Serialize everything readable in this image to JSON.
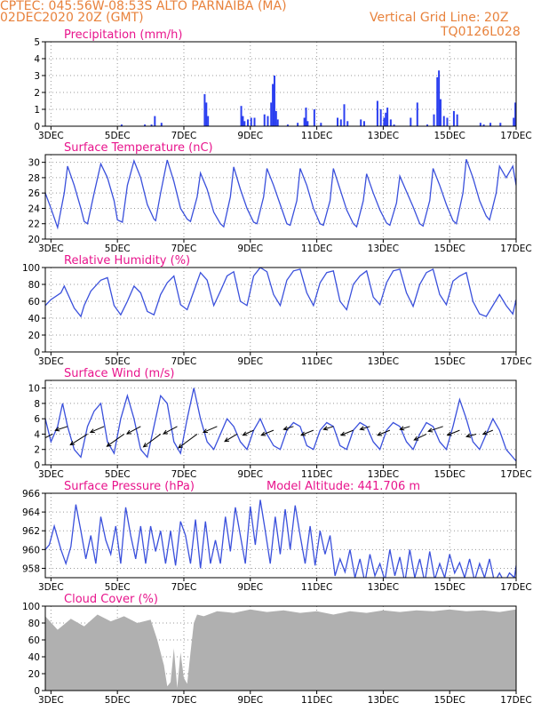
{
  "header": {
    "station": "CPTEC:   045:56W-08:53S   ALTO PARNAIBA (MA)",
    "run": "02DEC2020 20Z (GMT)",
    "grid_note": "Vertical Grid Line: 20Z",
    "code": "TQ0126L028",
    "text_color": "#e8823c",
    "title_color": "#e8148c"
  },
  "colors": {
    "line": "#3a50dc",
    "bar": "#2b3ff0",
    "cloud": "#b0b0b0",
    "arrow": "#000000"
  },
  "x_axis": {
    "labels": [
      "3DEC",
      "5DEC",
      "7DEC",
      "9DEC",
      "11DEC",
      "13DEC",
      "15DEC",
      "17DEC"
    ],
    "tick_days": [
      3,
      5,
      7,
      9,
      11,
      13,
      15,
      17
    ],
    "start_day": 2.83,
    "end_day": 17.0
  },
  "chart_data": [
    {
      "id": "precip",
      "type": "bar",
      "title": "Precipitation (mm/h)",
      "ylim": [
        0,
        5
      ],
      "yticks": [
        0,
        1,
        2,
        3,
        4,
        5
      ],
      "x": [
        5.1,
        5.8,
        6.0,
        6.1,
        6.3,
        7.6,
        7.65,
        7.7,
        8.7,
        8.75,
        8.8,
        8.9,
        9.0,
        9.1,
        9.4,
        9.5,
        9.6,
        9.65,
        9.7,
        9.75,
        9.8,
        10.1,
        10.4,
        10.6,
        10.65,
        10.7,
        10.9,
        11.1,
        11.6,
        11.7,
        11.8,
        11.9,
        12.3,
        12.4,
        12.8,
        12.9,
        13.0,
        13.05,
        13.1,
        13.2,
        13.3,
        13.8,
        14.0,
        14.3,
        14.5,
        14.6,
        14.65,
        14.7,
        14.8,
        14.9,
        15.1,
        15.2,
        15.9,
        16.0,
        16.2,
        16.5,
        16.9,
        16.95
      ],
      "values": [
        0.1,
        0.1,
        0.1,
        0.6,
        0.2,
        1.9,
        1.4,
        0.6,
        1.2,
        0.6,
        0.3,
        0.4,
        0.5,
        0.5,
        0.7,
        0.6,
        1.4,
        2.5,
        3.0,
        0.9,
        0.4,
        0.1,
        0.2,
        0.5,
        1.1,
        0.3,
        1.0,
        0.2,
        0.5,
        0.4,
        1.3,
        0.3,
        0.4,
        0.3,
        1.5,
        1.0,
        0.5,
        0.8,
        1.1,
        0.4,
        0.1,
        0.5,
        1.4,
        0.1,
        0.7,
        2.9,
        3.3,
        1.6,
        0.6,
        0.5,
        0.9,
        0.7,
        0.2,
        0.1,
        0.2,
        0.2,
        0.5,
        1.4
      ]
    },
    {
      "id": "temperature",
      "type": "line",
      "title": "Surface Temperature (nC)",
      "ylim": [
        20,
        31
      ],
      "yticks": [
        20,
        22,
        24,
        26,
        28,
        30
      ],
      "x": [
        2.83,
        3.0,
        3.2,
        3.4,
        3.5,
        3.7,
        3.9,
        4.0,
        4.1,
        4.3,
        4.5,
        4.7,
        4.9,
        5.0,
        5.15,
        5.3,
        5.5,
        5.7,
        5.9,
        6.1,
        6.15,
        6.3,
        6.5,
        6.7,
        6.9,
        7.1,
        7.2,
        7.4,
        7.5,
        7.7,
        7.9,
        8.1,
        8.2,
        8.4,
        8.5,
        8.7,
        8.9,
        9.1,
        9.2,
        9.4,
        9.5,
        9.7,
        9.9,
        10.1,
        10.2,
        10.4,
        10.5,
        10.7,
        10.9,
        11.1,
        11.2,
        11.4,
        11.5,
        11.7,
        11.9,
        12.1,
        12.2,
        12.4,
        12.5,
        12.7,
        12.9,
        13.1,
        13.2,
        13.4,
        13.5,
        13.7,
        13.9,
        14.1,
        14.2,
        14.4,
        14.5,
        14.7,
        14.9,
        15.1,
        15.2,
        15.4,
        15.5,
        15.7,
        15.9,
        16.1,
        16.2,
        16.4,
        16.5,
        16.7,
        16.9,
        17.0
      ],
      "values": [
        26,
        24,
        21.5,
        26,
        29.5,
        27,
        24,
        22.3,
        22,
        26,
        29.8,
        28,
        25,
        22.5,
        22.2,
        27,
        30.2,
        28,
        24.5,
        22.6,
        22.4,
        26,
        30.3,
        27.5,
        24,
        22.6,
        22.3,
        25.5,
        28.6,
        26.5,
        23.5,
        22,
        21.6,
        25.5,
        29.4,
        26.5,
        24,
        22.2,
        22,
        25.5,
        29.2,
        27,
        24.5,
        22,
        21.8,
        25,
        29.2,
        27,
        24,
        22,
        21.8,
        25,
        29.2,
        26.5,
        23.8,
        22,
        21.6,
        25,
        28.5,
        26,
        23.8,
        22.1,
        21.8,
        24.7,
        28.2,
        26.2,
        24.2,
        22,
        21.7,
        25,
        29.2,
        27,
        24.5,
        22.4,
        22,
        26,
        30.4,
        28,
        25,
        23,
        22.5,
        26,
        29.5,
        28,
        29.5,
        27
      ]
    },
    {
      "id": "humidity",
      "type": "line",
      "title": "Relative Humidity (%)",
      "ylim": [
        0,
        100
      ],
      "yticks": [
        0,
        20,
        40,
        60,
        80,
        100
      ],
      "x": [
        2.83,
        3.0,
        3.3,
        3.4,
        3.7,
        3.9,
        4.0,
        4.2,
        4.5,
        4.7,
        4.9,
        5.1,
        5.3,
        5.5,
        5.7,
        5.9,
        6.1,
        6.3,
        6.5,
        6.7,
        6.9,
        7.1,
        7.3,
        7.5,
        7.7,
        7.9,
        8.1,
        8.3,
        8.5,
        8.7,
        8.9,
        9.1,
        9.3,
        9.5,
        9.7,
        9.9,
        10.1,
        10.3,
        10.5,
        10.7,
        10.9,
        11.1,
        11.3,
        11.5,
        11.7,
        11.9,
        12.1,
        12.3,
        12.5,
        12.7,
        12.9,
        13.1,
        13.3,
        13.5,
        13.7,
        13.9,
        14.1,
        14.3,
        14.5,
        14.7,
        14.9,
        15.1,
        15.3,
        15.5,
        15.7,
        15.9,
        16.1,
        16.3,
        16.5,
        16.7,
        16.9,
        17.0
      ],
      "values": [
        55,
        62,
        70,
        78,
        52,
        42,
        55,
        72,
        85,
        88,
        55,
        44,
        60,
        78,
        70,
        48,
        44,
        68,
        82,
        90,
        56,
        50,
        72,
        94,
        85,
        55,
        72,
        90,
        95,
        60,
        55,
        90,
        100,
        95,
        68,
        55,
        85,
        96,
        98,
        70,
        55,
        82,
        94,
        96,
        60,
        50,
        80,
        90,
        96,
        65,
        56,
        82,
        96,
        98,
        70,
        54,
        80,
        94,
        98,
        68,
        56,
        84,
        90,
        94,
        60,
        45,
        42,
        55,
        68,
        55,
        45,
        62
      ]
    },
    {
      "id": "wind",
      "type": "line",
      "title": "Surface Wind (m/s)",
      "ylim": [
        0,
        11
      ],
      "yticks": [
        0,
        2,
        4,
        6,
        8,
        10
      ],
      "x": [
        2.83,
        3.0,
        3.2,
        3.35,
        3.5,
        3.7,
        3.9,
        4.1,
        4.3,
        4.5,
        4.7,
        4.9,
        5.1,
        5.3,
        5.5,
        5.7,
        5.9,
        6.1,
        6.3,
        6.5,
        6.7,
        6.9,
        7.1,
        7.3,
        7.5,
        7.7,
        7.9,
        8.1,
        8.3,
        8.5,
        8.7,
        8.9,
        9.1,
        9.3,
        9.5,
        9.7,
        9.9,
        10.1,
        10.3,
        10.5,
        10.7,
        10.9,
        11.1,
        11.3,
        11.5,
        11.7,
        11.9,
        12.1,
        12.3,
        12.5,
        12.7,
        12.9,
        13.1,
        13.3,
        13.5,
        13.7,
        13.9,
        14.1,
        14.3,
        14.5,
        14.7,
        14.9,
        15.1,
        15.3,
        15.5,
        15.7,
        15.9,
        16.1,
        16.3,
        16.5,
        16.7,
        16.9,
        17.0
      ],
      "values": [
        6,
        3,
        5,
        8,
        5,
        2,
        1,
        5,
        7,
        8,
        3,
        1.5,
        6,
        9,
        6,
        2,
        1,
        5,
        9,
        8,
        3,
        1.5,
        6,
        10,
        6,
        3,
        2,
        4,
        6,
        5,
        3,
        2,
        4.5,
        6,
        4,
        2.5,
        2,
        4.5,
        5.5,
        5,
        2.5,
        2,
        4.5,
        5.5,
        5,
        2.5,
        2,
        4.5,
        5.5,
        5,
        3,
        2,
        4.5,
        5.5,
        5,
        3,
        2,
        4,
        5.5,
        5,
        3,
        2,
        5,
        8.5,
        6,
        3,
        2,
        4,
        6,
        4.5,
        2,
        1,
        0.5
      ],
      "arrows": {
        "x": [
          3.05,
          3.5,
          4.1,
          4.6,
          5.2,
          5.7,
          6.3,
          6.8,
          7.4,
          8.0,
          8.6,
          9.1,
          9.7,
          10.3,
          10.9,
          11.5,
          12.1,
          12.6,
          13.2,
          13.8,
          14.3,
          14.8,
          15.3,
          15.8,
          16.3
        ],
        "y": [
          4,
          5,
          4,
          5,
          4,
          5,
          4,
          5,
          4,
          5,
          4,
          4.5,
          4.5,
          5,
          4.5,
          5,
          4.5,
          5,
          4.5,
          5,
          4,
          5,
          4.5,
          4,
          4.5
        ],
        "u": [
          -3,
          -2.5,
          -3.5,
          -2.8,
          -3.5,
          -2.8,
          -3.5,
          -2.8,
          -3.8,
          -2.8,
          -2.5,
          -2.2,
          -2.5,
          -2,
          -2.5,
          -2,
          -2.5,
          -2,
          -2.5,
          -2,
          -2.5,
          -3,
          -2.5,
          -2,
          -2
        ],
        "v": [
          -1.5,
          -0.8,
          -2.2,
          -1.2,
          -2.5,
          -1.5,
          -2.6,
          -1.5,
          -2.8,
          -1.2,
          -1.5,
          -1,
          -1,
          -0.6,
          -1,
          -0.6,
          -1,
          -0.6,
          -1,
          -0.6,
          -1.2,
          -1,
          -1,
          -0.5,
          -0.8
        ]
      }
    },
    {
      "id": "pressure",
      "type": "line",
      "title": "Surface Pressure (hPa)",
      "annotation": "Model Altitude: 441.706 m",
      "ylim": [
        957,
        966
      ],
      "yticks": [
        958,
        960,
        962,
        964,
        966
      ],
      "x": [
        2.83,
        2.95,
        3.1,
        3.3,
        3.45,
        3.6,
        3.75,
        3.9,
        4.05,
        4.2,
        4.35,
        4.5,
        4.65,
        4.8,
        4.95,
        5.1,
        5.25,
        5.4,
        5.55,
        5.7,
        5.85,
        6.0,
        6.15,
        6.3,
        6.45,
        6.6,
        6.75,
        6.9,
        7.05,
        7.2,
        7.35,
        7.5,
        7.65,
        7.8,
        7.95,
        8.1,
        8.25,
        8.4,
        8.55,
        8.7,
        8.85,
        9.0,
        9.15,
        9.3,
        9.45,
        9.6,
        9.75,
        9.9,
        10.05,
        10.2,
        10.35,
        10.5,
        10.65,
        10.8,
        10.95,
        11.1,
        11.25,
        11.4,
        11.55,
        11.7,
        11.85,
        12.0,
        12.15,
        12.3,
        12.45,
        12.6,
        12.75,
        12.9,
        13.05,
        13.2,
        13.35,
        13.5,
        13.65,
        13.8,
        13.95,
        14.1,
        14.25,
        14.4,
        14.55,
        14.7,
        14.85,
        15.0,
        15.15,
        15.3,
        15.45,
        15.6,
        15.75,
        15.9,
        16.05,
        16.2,
        16.35,
        16.5,
        16.65,
        16.8,
        16.95,
        17.0
      ],
      "values": [
        960,
        960.5,
        962.5,
        960,
        958.5,
        960.3,
        964.8,
        962,
        959,
        961.5,
        958.5,
        963.5,
        961,
        959.5,
        962.5,
        958.5,
        964.5,
        961.5,
        959,
        962.5,
        958.5,
        962.5,
        959.8,
        962,
        958.5,
        962,
        958.3,
        963,
        961.5,
        958.5,
        963.2,
        958,
        963,
        958.5,
        961,
        958.5,
        963.5,
        959.8,
        964.5,
        961.5,
        958.5,
        964.6,
        960.5,
        965.3,
        962,
        958.5,
        963.5,
        959.5,
        964.3,
        960,
        964.7,
        961.5,
        958.5,
        962.5,
        958.3,
        962,
        959.5,
        961.5,
        957.2,
        959,
        957.6,
        960,
        957,
        959,
        956.5,
        959.5,
        957.2,
        958.5,
        956.7,
        960,
        957.2,
        959.2,
        956.5,
        960,
        957,
        959,
        956.5,
        959.8,
        956.8,
        958.5,
        957,
        959.5,
        957.5,
        958.6,
        957,
        959,
        956.7,
        958.5,
        957,
        959,
        956.5,
        957.5,
        956.5,
        957.5,
        957,
        958.3
      ]
    },
    {
      "id": "cloud",
      "type": "bar",
      "title": "Cloud Cover (%)",
      "ylim": [
        0,
        100
      ],
      "yticks": [
        0,
        20,
        40,
        60,
        80,
        100
      ],
      "x": [
        2.83,
        3.2,
        3.6,
        4.0,
        4.4,
        4.8,
        5.2,
        5.6,
        6.0,
        6.2,
        6.4,
        6.5,
        6.6,
        6.7,
        6.8,
        6.9,
        7.0,
        7.1,
        7.2,
        7.3,
        7.4,
        7.6,
        8.0,
        8.5,
        9.0,
        9.5,
        10.0,
        10.5,
        11.0,
        11.5,
        12.0,
        12.5,
        13.0,
        13.5,
        14.0,
        14.5,
        15.0,
        15.5,
        16.0,
        16.5,
        17.0
      ],
      "values": [
        88,
        72,
        85,
        76,
        90,
        82,
        88,
        80,
        84,
        60,
        30,
        5,
        10,
        50,
        3,
        45,
        15,
        8,
        45,
        80,
        90,
        88,
        94,
        92,
        96,
        93,
        95,
        92,
        94,
        90,
        94,
        92,
        95,
        93,
        95,
        94,
        96,
        94,
        95,
        93,
        96
      ]
    }
  ]
}
